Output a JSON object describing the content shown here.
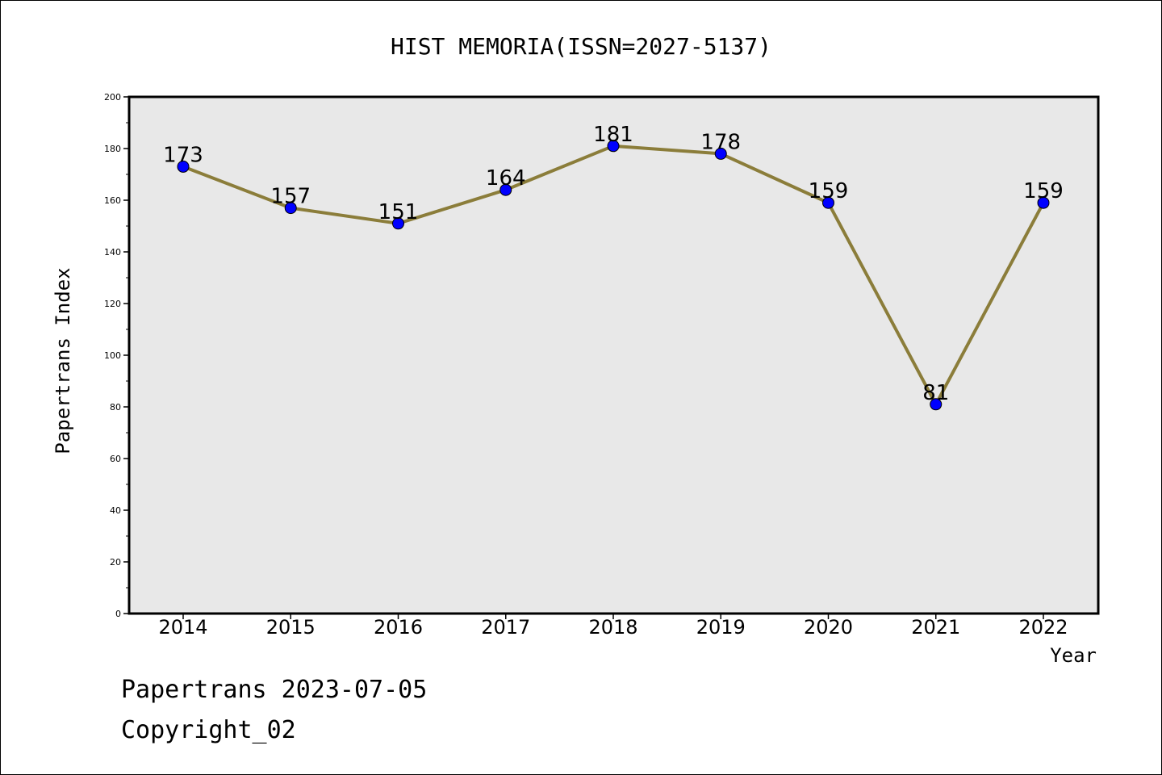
{
  "chart_data": {
    "type": "line",
    "title": "HIST MEMORIA(ISSN=2027-5137)",
    "xlabel": "Year",
    "ylabel": "Papertrans Index",
    "categories": [
      "2014",
      "2015",
      "2016",
      "2017",
      "2018",
      "2019",
      "2020",
      "2021",
      "2022"
    ],
    "values": [
      173,
      157,
      151,
      164,
      181,
      178,
      159,
      81,
      159
    ],
    "ylim": [
      0,
      200
    ],
    "yticks": [
      0,
      20,
      40,
      60,
      80,
      100,
      120,
      140,
      160,
      180,
      200
    ],
    "line_color": "#8b7d3a",
    "marker_color": "#0000ff",
    "plot_background": "#e8e8e8",
    "grid": false,
    "data_labels": true
  },
  "footer": {
    "stamp": "Papertrans 2023-07-05",
    "copyright": "Copyright_02"
  }
}
